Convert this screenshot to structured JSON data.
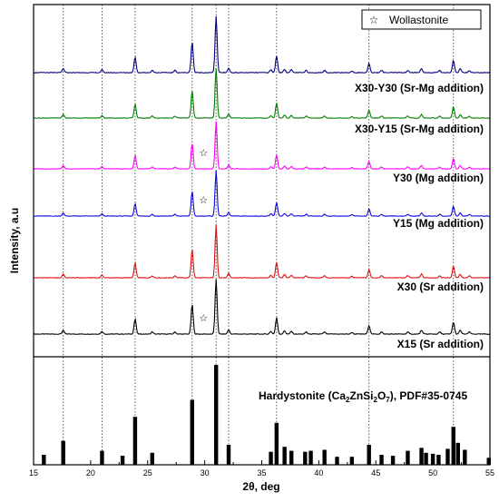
{
  "chart_data": {
    "type": "line",
    "xlabel": "2θ, deg",
    "ylabel": "Intensity, a.u",
    "xlim": [
      15,
      55
    ],
    "xticks": [
      15,
      20,
      25,
      30,
      35,
      40,
      45,
      50,
      55
    ],
    "legend": {
      "label": "Wollastonite",
      "symbol": "☆",
      "placement": "top-right"
    },
    "series": [
      {
        "name": "X15 (Sr addition)",
        "color": "#000000",
        "wollastonite_marker": true
      },
      {
        "name": "X30 (Sr addition)",
        "color": "#e01010",
        "wollastonite_marker": false
      },
      {
        "name": "Y15 (Mg addition)",
        "color": "#0a0ae0",
        "wollastonite_marker": true
      },
      {
        "name": "Y30 (Mg addition)",
        "color": "#ff00ff",
        "wollastonite_marker": true
      },
      {
        "name": "X30-Y15 (Sr-Mg addition)",
        "color": "#008000",
        "wollastonite_marker": false
      },
      {
        "name": "X30-Y30 (Sr-Mg addition)",
        "color": "#000080",
        "wollastonite_marker": false
      }
    ],
    "wollastonite_position": 29.9,
    "peaks": [
      {
        "x": 17.6,
        "h": 0.07
      },
      {
        "x": 21.0,
        "h": 0.05
      },
      {
        "x": 23.9,
        "h": 0.28
      },
      {
        "x": 25.4,
        "h": 0.04
      },
      {
        "x": 27.4,
        "h": 0.04
      },
      {
        "x": 28.9,
        "h": 0.55
      },
      {
        "x": 31.0,
        "h": 1.0
      },
      {
        "x": 32.1,
        "h": 0.08
      },
      {
        "x": 35.8,
        "h": 0.05
      },
      {
        "x": 36.3,
        "h": 0.3
      },
      {
        "x": 37.0,
        "h": 0.06
      },
      {
        "x": 37.6,
        "h": 0.05
      },
      {
        "x": 38.9,
        "h": 0.04
      },
      {
        "x": 40.5,
        "h": 0.04
      },
      {
        "x": 42.9,
        "h": 0.03
      },
      {
        "x": 44.4,
        "h": 0.16
      },
      {
        "x": 45.5,
        "h": 0.04
      },
      {
        "x": 47.8,
        "h": 0.04
      },
      {
        "x": 49.0,
        "h": 0.07
      },
      {
        "x": 50.6,
        "h": 0.04
      },
      {
        "x": 51.8,
        "h": 0.22
      },
      {
        "x": 52.4,
        "h": 0.07
      },
      {
        "x": 53.2,
        "h": 0.04
      }
    ],
    "reference": {
      "name": "Hardystonite (Ca₂ZnSi₂O₇), PDF#35-0745",
      "name_parts": [
        "Hardystonite (Ca",
        "2",
        "ZnSi",
        "2",
        "O",
        "7",
        "), PDF#35-0745"
      ],
      "sticks": [
        {
          "x": 15.9,
          "h": 0.1
        },
        {
          "x": 17.6,
          "h": 0.24
        },
        {
          "x": 21.0,
          "h": 0.14
        },
        {
          "x": 22.8,
          "h": 0.09
        },
        {
          "x": 23.9,
          "h": 0.48
        },
        {
          "x": 25.4,
          "h": 0.12
        },
        {
          "x": 28.9,
          "h": 0.65
        },
        {
          "x": 31.0,
          "h": 1.0
        },
        {
          "x": 32.1,
          "h": 0.2
        },
        {
          "x": 35.8,
          "h": 0.13
        },
        {
          "x": 36.3,
          "h": 0.42
        },
        {
          "x": 37.0,
          "h": 0.18
        },
        {
          "x": 37.6,
          "h": 0.14
        },
        {
          "x": 38.8,
          "h": 0.13
        },
        {
          "x": 39.3,
          "h": 0.14
        },
        {
          "x": 40.5,
          "h": 0.15
        },
        {
          "x": 41.6,
          "h": 0.08
        },
        {
          "x": 42.9,
          "h": 0.08
        },
        {
          "x": 44.4,
          "h": 0.2
        },
        {
          "x": 45.5,
          "h": 0.1
        },
        {
          "x": 46.5,
          "h": 0.09
        },
        {
          "x": 47.8,
          "h": 0.14
        },
        {
          "x": 49.0,
          "h": 0.17
        },
        {
          "x": 49.4,
          "h": 0.12
        },
        {
          "x": 50.0,
          "h": 0.11
        },
        {
          "x": 50.5,
          "h": 0.1
        },
        {
          "x": 51.3,
          "h": 0.16
        },
        {
          "x": 51.8,
          "h": 0.38
        },
        {
          "x": 52.2,
          "h": 0.22
        },
        {
          "x": 52.8,
          "h": 0.15
        },
        {
          "x": 54.9,
          "h": 0.07
        }
      ]
    },
    "dotted_guides": [
      17.6,
      21.0,
      23.9,
      28.9,
      31.0,
      32.1,
      36.3,
      44.4,
      51.8
    ]
  }
}
